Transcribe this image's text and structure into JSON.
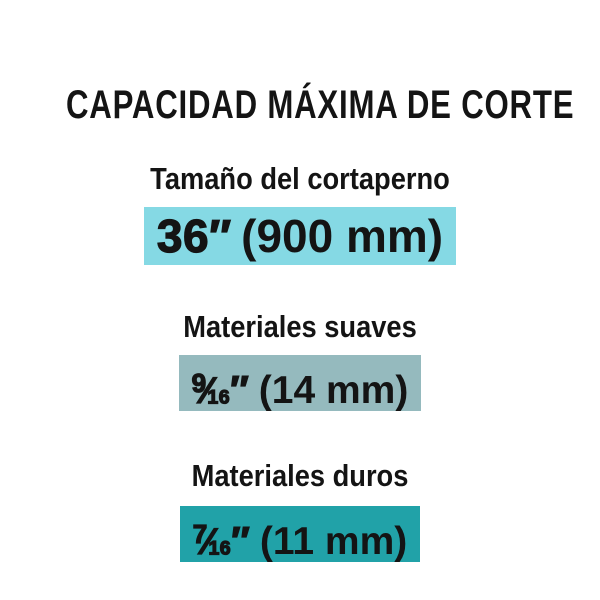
{
  "page": {
    "background": "#ffffff",
    "text_color": "#141414"
  },
  "title": "CAPACIDAD MÁXIMA DE CORTE",
  "sections": [
    {
      "label": "Tamaño del cortaperno",
      "highlight_color": "#85D9E4",
      "value": {
        "main": "36",
        "inch_mark": "″",
        "paren": "(900 mm)"
      }
    },
    {
      "label": "Materiales suaves",
      "highlight_color": "#95BABE",
      "value": {
        "fraction_numerator": "9",
        "fraction_slash": "⁄",
        "fraction_denominator": "16",
        "inch_mark": "″",
        "paren": "(14 mm)"
      }
    },
    {
      "label": "Materiales duros",
      "highlight_color": "#21A2A8",
      "value": {
        "fraction_numerator": "7",
        "fraction_slash": "⁄",
        "fraction_denominator": "16",
        "inch_mark": "″",
        "paren": "(11 mm)"
      }
    }
  ]
}
